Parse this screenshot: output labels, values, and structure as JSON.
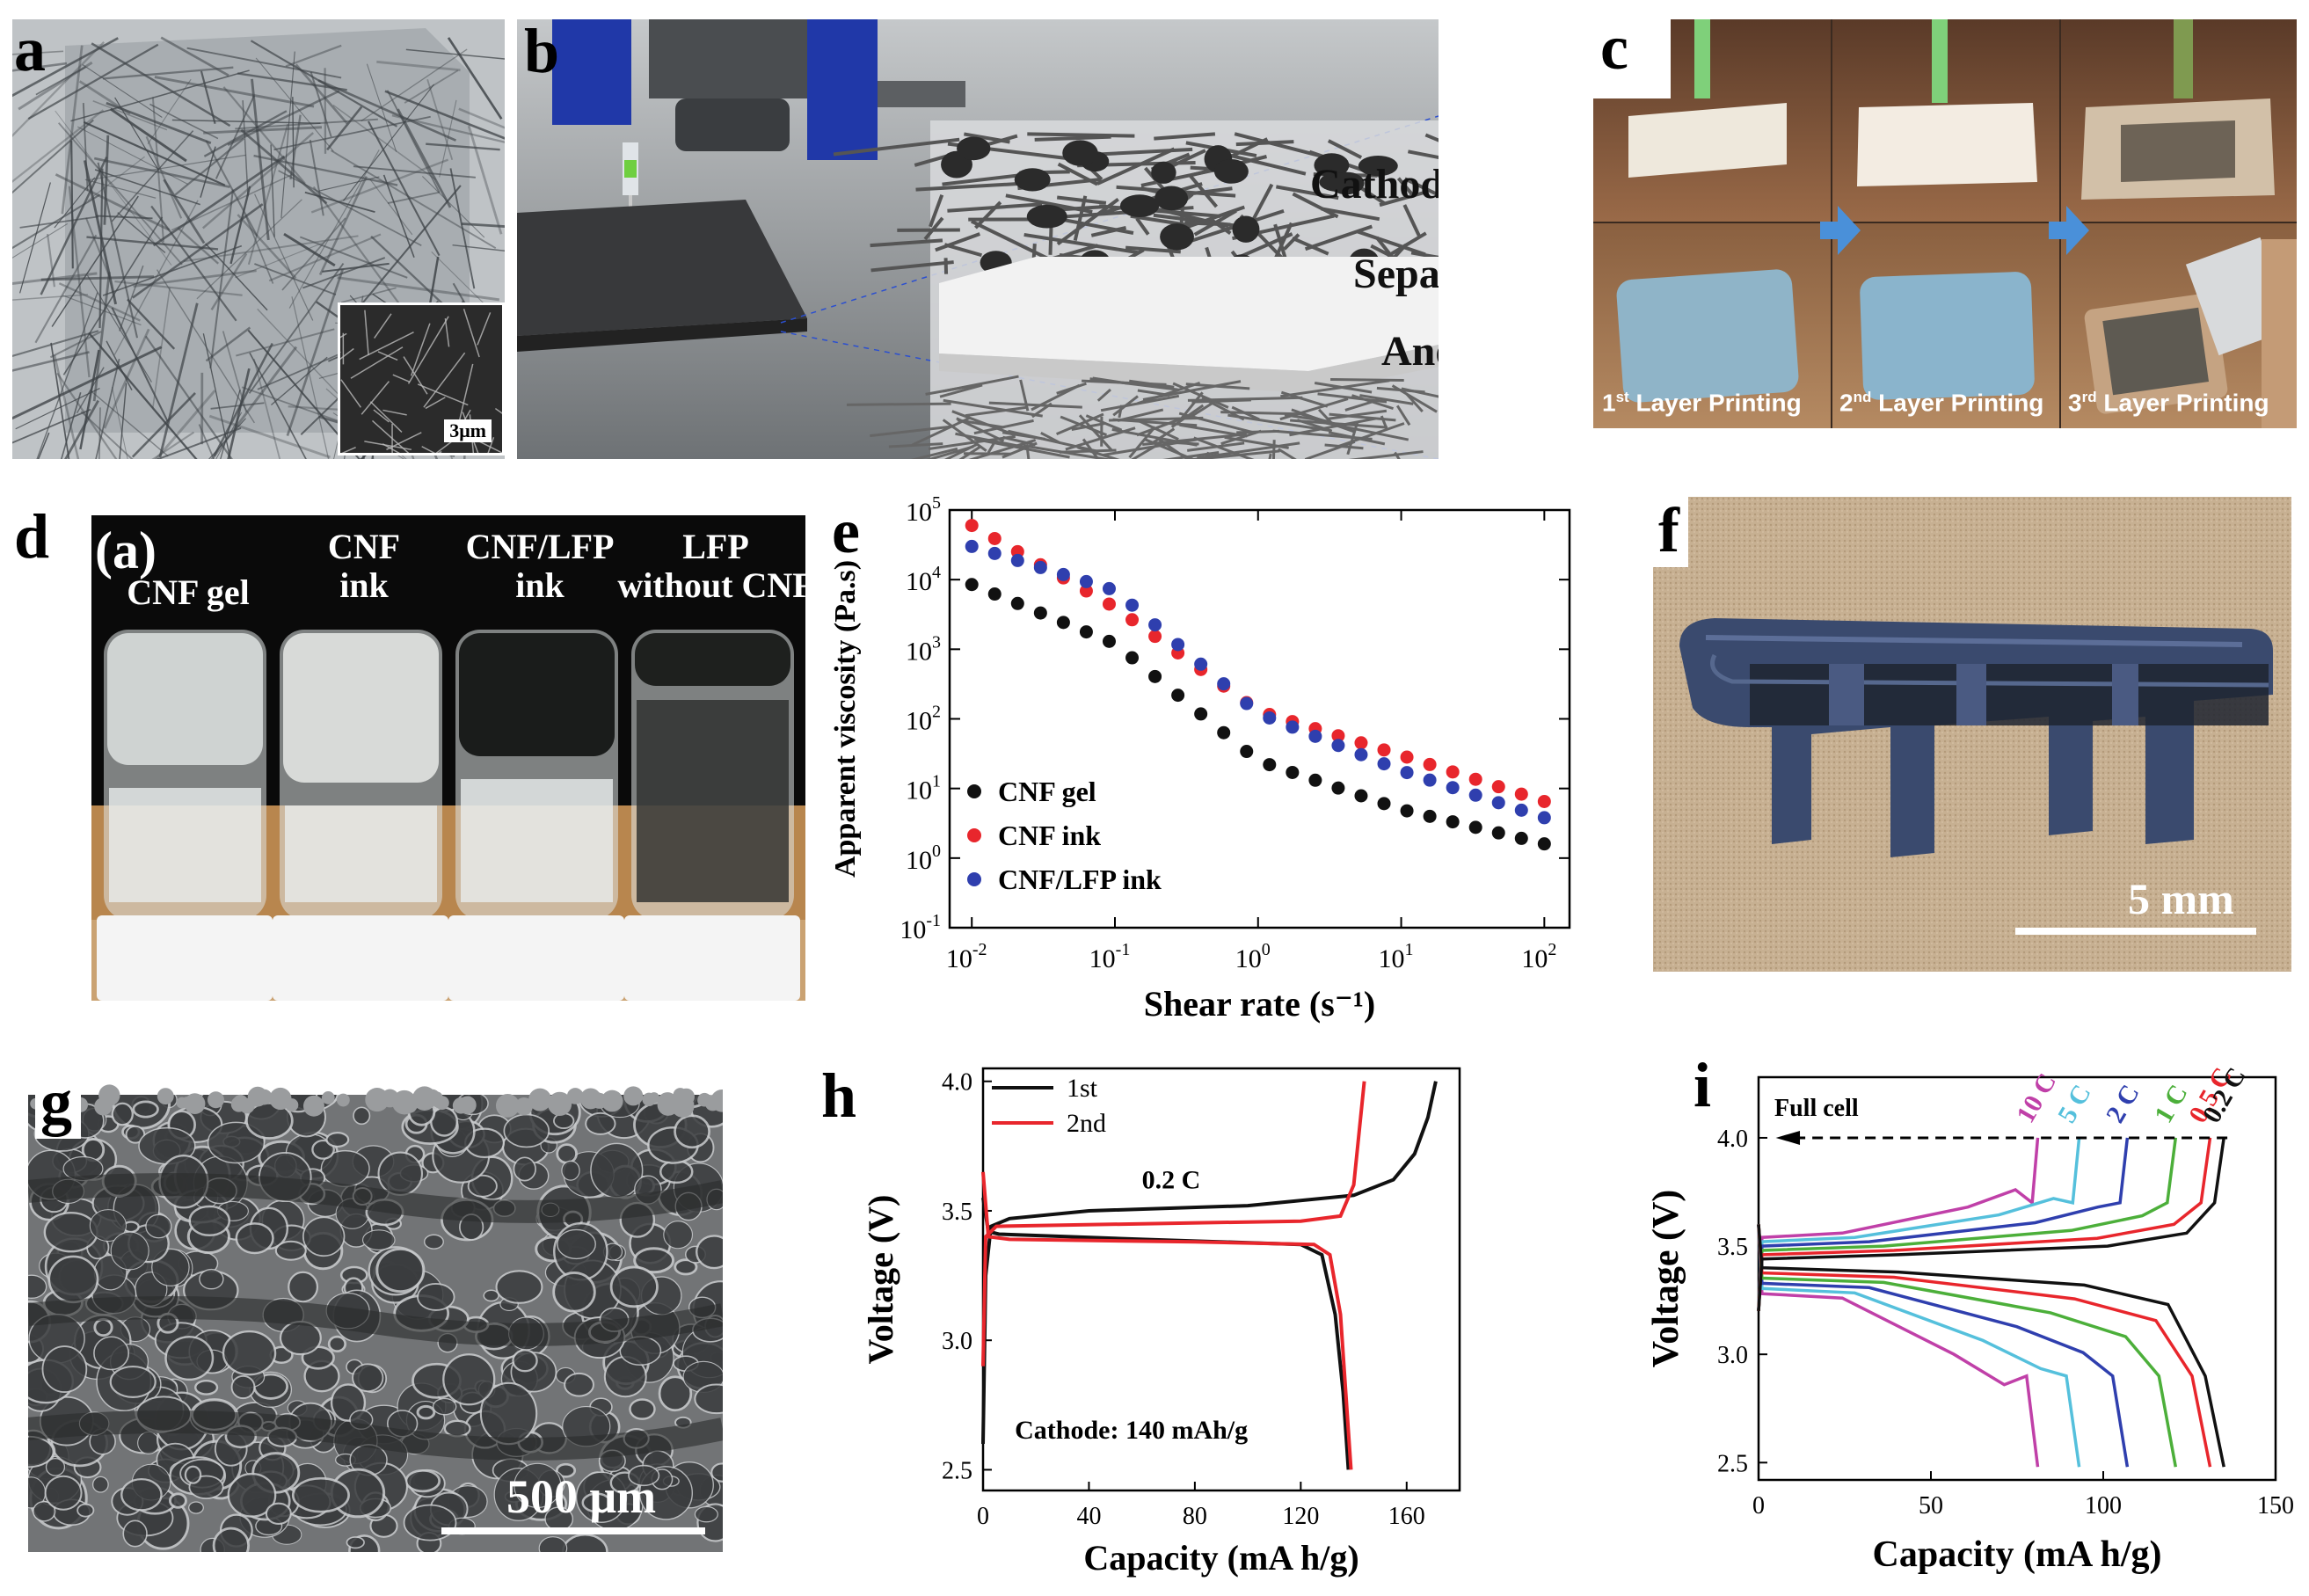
{
  "panel_labels": {
    "a": "a",
    "b": "b",
    "c": "c",
    "d": "d",
    "e": "e",
    "f": "f",
    "g": "g",
    "h": "h",
    "i": "i"
  },
  "panel_a": {
    "scale_bar": "3μm"
  },
  "panel_b": {
    "labels": [
      "Cathode",
      "Separator",
      "Anode"
    ]
  },
  "panel_c": {
    "captions": [
      {
        "pre": "1",
        "sup": "st",
        "post": " Layer Printing"
      },
      {
        "pre": "2",
        "sup": "nd",
        "post": " Layer Printing"
      },
      {
        "pre": "3",
        "sup": "rd",
        "post": " Layer Printing"
      }
    ]
  },
  "panel_d": {
    "sub_label": "(a)",
    "vials": [
      {
        "line1": "",
        "line2": "CNF gel"
      },
      {
        "line1": "CNF",
        "line2": "ink"
      },
      {
        "line1": "CNF/LFP",
        "line2": "ink"
      },
      {
        "line1": "LFP",
        "line2": "without CNF"
      }
    ]
  },
  "panel_f": {
    "scale_bar": "5 mm"
  },
  "panel_g": {
    "scale_bar": "500 μm"
  },
  "chart_data": [
    {
      "id": "e",
      "type": "scatter",
      "xlabel": "Shear rate (s⁻¹)",
      "ylabel": "Apparent viscosity (Pa.s)",
      "xscale": "log",
      "yscale": "log",
      "xlim": [
        0.007,
        150
      ],
      "ylim": [
        0.1,
        100000
      ],
      "xticks": [
        0.01,
        0.1,
        1,
        10,
        100
      ],
      "xticklabels": [
        {
          "b": "10",
          "e": "-2"
        },
        {
          "b": "10",
          "e": "-1"
        },
        {
          "b": "10",
          "e": "0"
        },
        {
          "b": "10",
          "e": "1"
        },
        {
          "b": "10",
          "e": "2"
        }
      ],
      "yticks": [
        0.1,
        1,
        10,
        100,
        1000,
        10000,
        100000
      ],
      "yticklabels": [
        {
          "b": "10",
          "e": "-1"
        },
        {
          "b": "10",
          "e": "0"
        },
        {
          "b": "10",
          "e": "1"
        },
        {
          "b": "10",
          "e": "2"
        },
        {
          "b": "10",
          "e": "3"
        },
        {
          "b": "10",
          "e": "4"
        },
        {
          "b": "10",
          "e": "5"
        }
      ],
      "legend_position": "bottom-left",
      "series": [
        {
          "name": "CNF gel",
          "color": "#111111",
          "x_start": 0.01,
          "x_end": 100,
          "points": 26,
          "anchors": [
            [
              0.01,
              8500
            ],
            [
              0.1,
              1200
            ],
            [
              1,
              25
            ],
            [
              10,
              5
            ],
            [
              100,
              1.6
            ]
          ]
        },
        {
          "name": "CNF ink",
          "color": "#e8262c",
          "x_start": 0.01,
          "x_end": 100,
          "points": 26,
          "anchors": [
            [
              0.01,
              60000
            ],
            [
              0.1,
              4000
            ],
            [
              1,
              130
            ],
            [
              10,
              30
            ],
            [
              100,
              6.5
            ]
          ]
        },
        {
          "name": "CNF/LFP ink",
          "color": "#2f3fae",
          "x_start": 0.01,
          "x_end": 100,
          "points": 26,
          "anchors": [
            [
              0.01,
              30000
            ],
            [
              0.1,
              7000
            ],
            [
              1,
              120
            ],
            [
              10,
              18
            ],
            [
              100,
              3.8
            ]
          ]
        }
      ]
    },
    {
      "id": "h",
      "type": "line",
      "xlabel": "Capacity (mA h/g)",
      "ylabel": "Voltage (V)",
      "xlim": [
        0,
        180
      ],
      "ylim": [
        2.42,
        4.05
      ],
      "xticks": [
        0,
        40,
        80,
        120,
        160
      ],
      "yticks": [
        2.5,
        3.0,
        3.5,
        4.0
      ],
      "yticklabels": [
        "2.5",
        "3.0",
        "3.5",
        "4.0"
      ],
      "legend_position": "top-left",
      "annotations": [
        "0.2 C",
        "Cathode: 140 mAh/g"
      ],
      "series": [
        {
          "name": "1st",
          "color": "#111111",
          "charge": [
            [
              0,
              2.6
            ],
            [
              1,
              3.25
            ],
            [
              3,
              3.44
            ],
            [
              10,
              3.47
            ],
            [
              40,
              3.5
            ],
            [
              100,
              3.52
            ],
            [
              140,
              3.56
            ],
            [
              155,
              3.62
            ],
            [
              163,
              3.72
            ],
            [
              168,
              3.86
            ],
            [
              171,
              4.0
            ]
          ],
          "discharge": [
            [
              0,
              3.55
            ],
            [
              2,
              3.42
            ],
            [
              6,
              3.41
            ],
            [
              60,
              3.39
            ],
            [
              120,
              3.37
            ],
            [
              128,
              3.33
            ],
            [
              133,
              3.1
            ],
            [
              136,
              2.8
            ],
            [
              138,
              2.5
            ]
          ]
        },
        {
          "name": "2nd",
          "color": "#e8262c",
          "charge": [
            [
              0,
              2.9
            ],
            [
              1,
              3.4
            ],
            [
              5,
              3.44
            ],
            [
              60,
              3.45
            ],
            [
              120,
              3.46
            ],
            [
              135,
              3.48
            ],
            [
              140,
              3.6
            ],
            [
              142,
              3.8
            ],
            [
              144,
              4.0
            ]
          ],
          "discharge": [
            [
              0,
              3.65
            ],
            [
              2,
              3.4
            ],
            [
              10,
              3.39
            ],
            [
              80,
              3.38
            ],
            [
              125,
              3.37
            ],
            [
              131,
              3.33
            ],
            [
              135,
              3.1
            ],
            [
              137,
              2.8
            ],
            [
              139,
              2.5
            ]
          ]
        }
      ]
    },
    {
      "id": "i",
      "type": "line",
      "xlabel": "Capacity (mA h/g)",
      "ylabel": "Voltage (V)",
      "xlim": [
        0,
        150
      ],
      "ylim": [
        2.42,
        4.28
      ],
      "xticks": [
        0,
        50,
        100,
        150
      ],
      "yticks": [
        2.5,
        3.0,
        3.5,
        4.0
      ],
      "yticklabels": [
        "2.5",
        "3.0",
        "3.5",
        "4.0"
      ],
      "title_annotation": "Full cell",
      "rates": [
        {
          "label": "10 C",
          "color": "#c040a8",
          "cap": 81
        },
        {
          "label": "5 C",
          "color": "#55c0dc",
          "cap": 93
        },
        {
          "label": "2 C",
          "color": "#2f3fae",
          "cap": 107
        },
        {
          "label": "1 C",
          "color": "#4caf3a",
          "cap": 121
        },
        {
          "label": "0.5 C",
          "color": "#e8262c",
          "cap": 131
        },
        {
          "label": "0.2 C",
          "color": "#111111",
          "cap": 135
        }
      ]
    }
  ]
}
